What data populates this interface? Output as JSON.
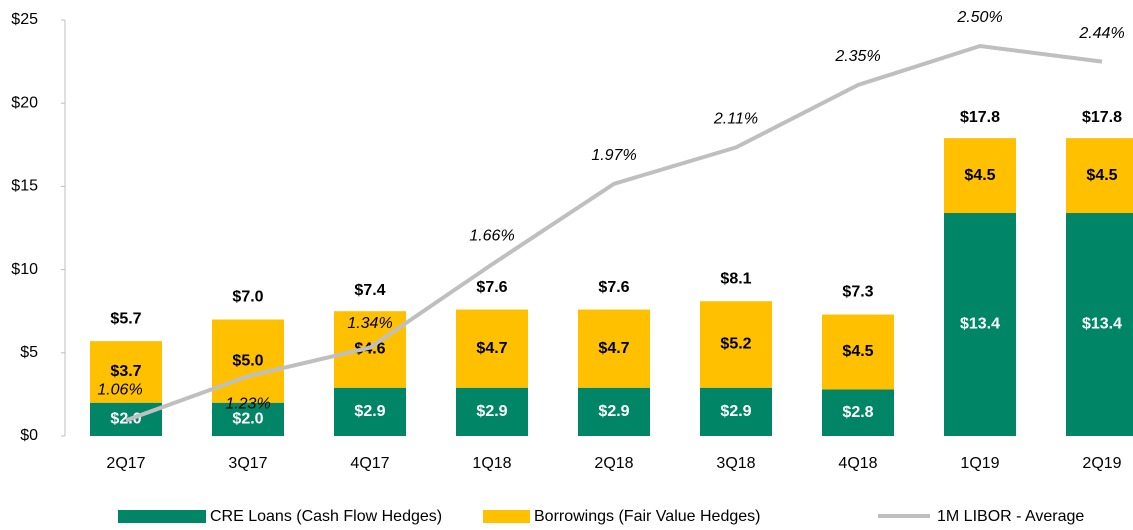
{
  "chart_data": {
    "type": "stacked-bar-line",
    "categories": [
      "2Q17",
      "3Q17",
      "4Q17",
      "1Q18",
      "2Q18",
      "3Q18",
      "4Q18",
      "1Q19",
      "2Q19"
    ],
    "series": [
      {
        "name": "CRE Loans (Cash Flow Hedges)",
        "color": "#008566",
        "type": "bar",
        "values": [
          2.0,
          2.0,
          2.9,
          2.9,
          2.9,
          2.9,
          2.8,
          13.4,
          13.4
        ],
        "value_labels": [
          "$2.0",
          "$2.0",
          "$2.9",
          "$2.9",
          "$2.9",
          "$2.9",
          "$2.8",
          "$13.4",
          "$13.4"
        ]
      },
      {
        "name": "Borrowings (Fair Value Hedges)",
        "color": "#FFC000",
        "type": "bar",
        "values": [
          3.7,
          5.0,
          4.6,
          4.7,
          4.7,
          5.2,
          4.5,
          4.5,
          4.5
        ],
        "value_labels": [
          "$3.7",
          "$5.0",
          "$4.6",
          "$4.7",
          "$4.7",
          "$5.2",
          "$4.5",
          "$4.5",
          "$4.5"
        ]
      },
      {
        "name": "1M LIBOR - Average",
        "color": "#BFBFBF",
        "type": "line",
        "axis": "y2",
        "values": [
          1.06,
          1.23,
          1.34,
          1.66,
          1.97,
          2.11,
          2.35,
          2.5,
          2.44
        ],
        "value_labels": [
          "1.06%",
          "1.23%",
          "1.34%",
          "1.66%",
          "1.97%",
          "2.11%",
          "2.35%",
          "2.50%",
          "2.44%"
        ]
      }
    ],
    "totals": [
      5.7,
      7.0,
      7.4,
      7.6,
      7.6,
      8.1,
      7.3,
      17.8,
      17.8
    ],
    "total_labels": [
      "$5.7",
      "$7.0",
      "$7.4",
      "$7.6",
      "$7.6",
      "$8.1",
      "$7.3",
      "$17.8",
      "$17.8"
    ],
    "ylim": [
      0,
      25
    ],
    "yticks": [
      {
        "value": 0,
        "label": "$0"
      },
      {
        "value": 5,
        "label": "$5"
      },
      {
        "value": 10,
        "label": "$10"
      },
      {
        "value": 15,
        "label": "$15"
      },
      {
        "value": 20,
        "label": "$20"
      },
      {
        "value": 25,
        "label": "$25"
      }
    ],
    "y2lim": [
      1.0,
      2.6
    ],
    "grid": false,
    "legend": "bottom"
  }
}
